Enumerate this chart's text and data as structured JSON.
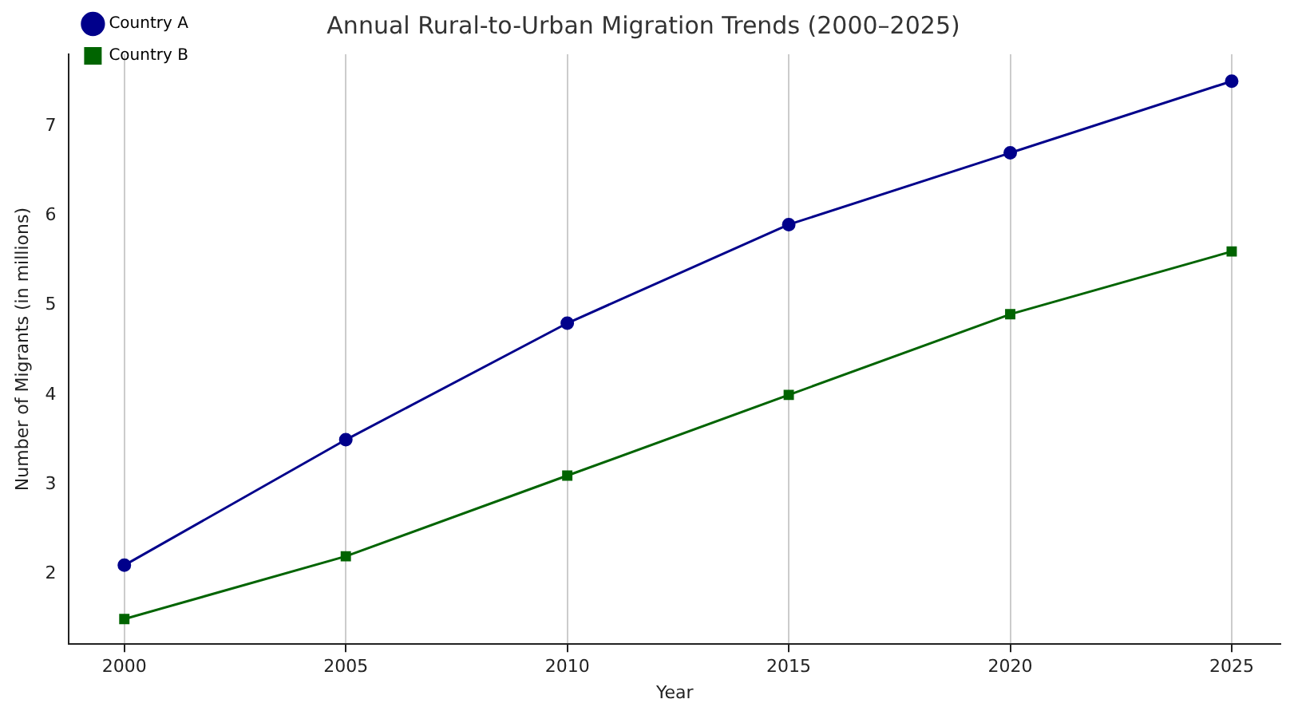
{
  "chart_data": {
    "type": "line",
    "title": "Annual Rural-to-Urban Migration Trends (2000–2025)",
    "xlabel": "Year",
    "ylabel": "Number of Migrants (in millions)",
    "x": [
      2000,
      2005,
      2010,
      2015,
      2020,
      2025
    ],
    "series": [
      {
        "name": "Country A",
        "color": "#00008b",
        "marker": "circle",
        "values": [
          2.1,
          3.5,
          4.8,
          5.9,
          6.7,
          7.5
        ]
      },
      {
        "name": "Country B",
        "color": "#006400",
        "marker": "square",
        "values": [
          1.5,
          2.2,
          3.1,
          4.0,
          4.9,
          5.6
        ]
      }
    ],
    "xlim": [
      1998.75,
      2026.1
    ],
    "xticks": [
      2000,
      2005,
      2010,
      2015,
      2020,
      2025
    ],
    "ylim": [
      1.22,
      7.8
    ],
    "yticks": [
      2,
      3,
      4,
      5,
      6,
      7
    ],
    "grid": "x",
    "legend": "top left",
    "line_style": "solid"
  }
}
